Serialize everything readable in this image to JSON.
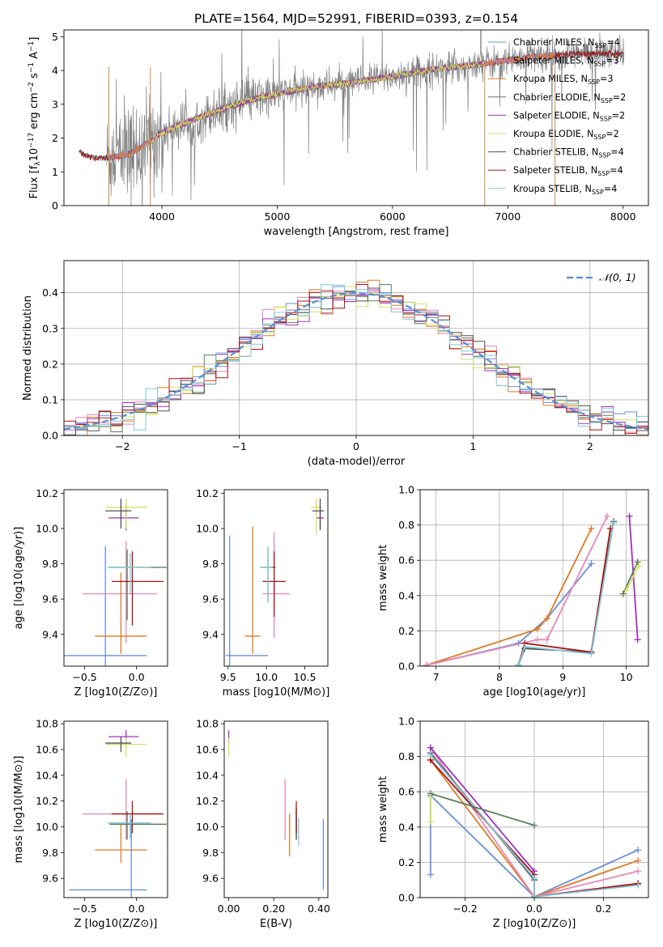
{
  "figure": {
    "title": "PLATE=1564, MJD=52991, FIBERID=0393, z=0.154"
  },
  "colors": {
    "Chabrier MILES": "#6a8fdc",
    "Salpeter MILES": "#e888b8",
    "Kroupa MILES": "#e07a22",
    "Chabrier ELODIE": "#5a7e5a",
    "Salpeter ELODIE": "#a030c0",
    "Kroupa ELODIE": "#d4e060",
    "Chabrier STELIB": "#505050",
    "Salpeter STELIB": "#b01010",
    "Kroupa STELIB": "#80c8d8",
    "data": "#808080",
    "gauss": "#5b8ed6",
    "grid": "#b0b0b0"
  },
  "chart_data": [
    {
      "id": "spectrum",
      "type": "line",
      "xlabel": "wavelength [Angstrom, rest frame]",
      "ylabel": "Flux [f_λ 10^-17 erg cm^-2 s^-1 A^-1]",
      "xlim": [
        3150,
        8220
      ],
      "ylim": [
        0,
        5.2
      ],
      "xticks": [
        4000,
        5000,
        6000,
        7000,
        8000
      ],
      "yticks": [
        0,
        1,
        2,
        3,
        4,
        5
      ],
      "grid": false,
      "legend_position": "right",
      "legend": [
        {
          "label": "Chabrier MILES, N",
          "sub": "SSP",
          "tail": "=4",
          "series": "Chabrier MILES"
        },
        {
          "label": "Salpeter MILES, N",
          "sub": "SSP",
          "tail": "=3",
          "series": "Salpeter MILES"
        },
        {
          "label": "Kroupa MILES, N",
          "sub": "SSP",
          "tail": "=3",
          "series": "Kroupa MILES"
        },
        {
          "label": "Chabrier ELODIE, N",
          "sub": "SSP",
          "tail": "=2",
          "series": "Chabrier ELODIE"
        },
        {
          "label": "Salpeter ELODIE, N",
          "sub": "SSP",
          "tail": "=2",
          "series": "Salpeter ELODIE"
        },
        {
          "label": "Kroupa ELODIE, N",
          "sub": "SSP",
          "tail": "=2",
          "series": "Kroupa ELODIE"
        },
        {
          "label": "Chabrier STELIB, N",
          "sub": "SSP",
          "tail": "=4",
          "series": "Chabrier STELIB"
        },
        {
          "label": "Salpeter STELIB, N",
          "sub": "SSP",
          "tail": "=4",
          "series": "Salpeter STELIB"
        },
        {
          "label": "Kroupa STELIB, N",
          "sub": "SSP",
          "tail": "=4",
          "series": "Kroupa STELIB"
        }
      ],
      "continuum": [
        [
          3280,
          1.65
        ],
        [
          3320,
          1.5
        ],
        [
          3400,
          1.42
        ],
        [
          3500,
          1.4
        ],
        [
          3600,
          1.45
        ],
        [
          3700,
          1.5
        ],
        [
          3800,
          1.7
        ],
        [
          3900,
          1.9
        ],
        [
          4000,
          2.15
        ],
        [
          4200,
          2.45
        ],
        [
          4400,
          2.7
        ],
        [
          4600,
          2.95
        ],
        [
          4800,
          3.15
        ],
        [
          5000,
          3.3
        ],
        [
          5200,
          3.45
        ],
        [
          5400,
          3.55
        ],
        [
          5600,
          3.62
        ],
        [
          5800,
          3.72
        ],
        [
          6000,
          3.82
        ],
        [
          6200,
          3.95
        ],
        [
          6400,
          4.05
        ],
        [
          6600,
          4.12
        ],
        [
          6800,
          4.2
        ],
        [
          7000,
          4.3
        ],
        [
          7200,
          4.4
        ],
        [
          7400,
          4.45
        ],
        [
          7600,
          4.5
        ],
        [
          7800,
          4.5
        ],
        [
          8000,
          4.48
        ]
      ],
      "series_ranges": {
        "Chabrier MILES": [
          3540,
          7410
        ],
        "Salpeter MILES": [
          3540,
          7410
        ],
        "Kroupa MILES": [
          3540,
          7410
        ],
        "Chabrier ELODIE": [
          3900,
          6800
        ],
        "Salpeter ELODIE": [
          3900,
          6800
        ],
        "Kroupa ELODIE": [
          3900,
          6800
        ],
        "Chabrier STELIB": [
          3280,
          8000
        ],
        "Salpeter STELIB": [
          3280,
          8000
        ],
        "Kroupa STELIB": [
          3280,
          8000
        ]
      },
      "data_range": [
        3520,
        8010
      ],
      "note_data_series": "observed spectrum shown in grey"
    },
    {
      "id": "residuals",
      "type": "histogram",
      "xlabel": "(data-model)/error",
      "ylabel": "Normed distribution",
      "xlim": [
        -2.5,
        2.5
      ],
      "ylim": [
        0,
        0.49
      ],
      "xticks": [
        -2,
        -1,
        0,
        1,
        2
      ],
      "yticks": [
        0,
        0.1,
        0.2,
        0.3,
        0.4
      ],
      "grid": true,
      "legend_position": "top-right",
      "legend": [
        {
          "label": "𝒩(0, 1)",
          "style": "dashed"
        }
      ],
      "bin_width": 0.1
    },
    {
      "id": "z-age",
      "type": "errorbar",
      "xlabel": "Z [log10(Z/Z⊙)]",
      "ylabel": "age [log10(age/yr)]",
      "xlim": [
        -0.7,
        0.3
      ],
      "ylim": [
        9.22,
        10.22
      ],
      "xticks": [
        -0.5,
        0.0
      ],
      "yticks": [
        9.4,
        9.6,
        9.8,
        10.0,
        10.2
      ],
      "grid": false,
      "points": [
        {
          "series": "Chabrier MILES",
          "x": -0.3,
          "y": 9.28,
          "xl": 0.4,
          "xr": 0.4,
          "yl": 0.62,
          "yr": 0.62
        },
        {
          "series": "Salpeter MILES",
          "x": -0.1,
          "y": 9.63,
          "xl": 0.42,
          "xr": 0.3,
          "yl": 0.28,
          "yr": 0.3
        },
        {
          "series": "Kroupa MILES",
          "x": -0.15,
          "y": 9.39,
          "xl": 0.25,
          "xr": 0.25,
          "yl": 0.1,
          "yr": 0.36
        },
        {
          "series": "Chabrier ELODIE",
          "x": -0.09,
          "y": 9.78,
          "xl": 0.17,
          "xr": 0.38,
          "yl": 0.3,
          "yr": 0.1
        },
        {
          "series": "Salpeter ELODIE",
          "x": -0.1,
          "y": 10.06,
          "xl": 0.17,
          "xr": 0.12,
          "yl": 0.07,
          "yr": 0.07
        },
        {
          "series": "Kroupa ELODIE",
          "x": -0.1,
          "y": 10.12,
          "xl": 0.2,
          "xr": 0.2,
          "yl": 0.12,
          "yr": 0.05
        },
        {
          "series": "Chabrier STELIB",
          "x": -0.15,
          "y": 10.1,
          "xl": 0.15,
          "xr": 0.1,
          "yl": 0.1,
          "yr": 0.07
        },
        {
          "series": "Salpeter STELIB",
          "x": -0.04,
          "y": 9.7,
          "xl": 0.2,
          "xr": 0.3,
          "yl": 0.25,
          "yr": 0.17
        },
        {
          "series": "Kroupa STELIB",
          "x": -0.06,
          "y": 9.78,
          "xl": 0.22,
          "xr": 0.2,
          "yl": 0.15,
          "yr": 0.08
        }
      ]
    },
    {
      "id": "mass-age",
      "type": "errorbar",
      "xlabel": "mass [log10(M/M⊙)]",
      "ylabel": "",
      "xlim": [
        9.45,
        10.8
      ],
      "ylim": [
        9.22,
        10.22
      ],
      "xticks": [
        9.5,
        10.0,
        10.5
      ],
      "yticks": [
        9.4,
        9.6,
        9.8,
        10.0,
        10.2
      ],
      "grid": false,
      "points": [
        {
          "series": "Chabrier MILES",
          "x": 9.52,
          "y": 9.28,
          "xl": 0.05,
          "xr": 0.5,
          "yl": 0.62,
          "yr": 0.68
        },
        {
          "series": "Salpeter MILES",
          "x": 10.1,
          "y": 9.63,
          "xl": 0.15,
          "xr": 0.2,
          "yl": 0.25,
          "yr": 0.35
        },
        {
          "series": "Kroupa MILES",
          "x": 9.82,
          "y": 9.39,
          "xl": 0.1,
          "xr": 0.1,
          "yl": 0.1,
          "yr": 0.62
        },
        {
          "series": "Chabrier ELODIE",
          "x": 10.02,
          "y": 9.78,
          "xl": 0.1,
          "xr": 0.1,
          "yl": 0.2,
          "yr": 0.1
        },
        {
          "series": "Salpeter ELODIE",
          "x": 10.7,
          "y": 10.06,
          "xl": 0.05,
          "xr": 0.05,
          "yl": 0.07,
          "yr": 0.07
        },
        {
          "series": "Kroupa ELODIE",
          "x": 10.65,
          "y": 10.12,
          "xl": 0.07,
          "xr": 0.07,
          "yl": 0.15,
          "yr": 0.05
        },
        {
          "series": "Chabrier STELIB",
          "x": 10.7,
          "y": 10.1,
          "xl": 0.1,
          "xr": 0.05,
          "yl": 0.1,
          "yr": 0.07
        },
        {
          "series": "Salpeter STELIB",
          "x": 10.1,
          "y": 9.7,
          "xl": 0.15,
          "xr": 0.15,
          "yl": 0.2,
          "yr": 0.17
        },
        {
          "series": "Kroupa STELIB",
          "x": 10.02,
          "y": 9.78,
          "xl": 0.1,
          "xr": 0.05,
          "yl": 0.2,
          "yr": 0.12
        }
      ]
    },
    {
      "id": "age-weight",
      "type": "line",
      "xlabel": "age [log10(age/yr)]",
      "ylabel": "mass weight",
      "xlim": [
        6.75,
        10.35
      ],
      "ylim": [
        0,
        1.0
      ],
      "xticks": [
        7,
        8,
        9,
        10
      ],
      "yticks": [
        0,
        0.2,
        0.4,
        0.6,
        0.8,
        1.0
      ],
      "grid": true,
      "series": [
        {
          "name": "Chabrier MILES",
          "x": [
            6.85,
            8.3,
            8.75,
            9.45
          ],
          "y": [
            0.005,
            0.13,
            0.27,
            0.58
          ]
        },
        {
          "name": "Kroupa MILES",
          "x": [
            6.85,
            8.6,
            8.75,
            9.45
          ],
          "y": [
            0.005,
            0.21,
            0.27,
            0.78
          ]
        },
        {
          "name": "Salpeter MILES",
          "x": [
            6.85,
            8.6,
            8.75,
            9.7
          ],
          "y": [
            0.005,
            0.15,
            0.15,
            0.85
          ]
        },
        {
          "name": "Chabrier STELIB",
          "x": [
            8.3,
            8.4,
            9.45,
            9.8
          ],
          "y": [
            0.005,
            0.1,
            0.08,
            0.82
          ]
        },
        {
          "name": "Salpeter STELIB",
          "x": [
            8.3,
            8.4,
            9.45,
            9.75
          ],
          "y": [
            0.005,
            0.13,
            0.08,
            0.78
          ]
        },
        {
          "name": "Kroupa STELIB",
          "x": [
            8.3,
            8.4,
            9.45,
            9.8
          ],
          "y": [
            0.005,
            0.11,
            0.07,
            0.81
          ]
        },
        {
          "name": "Salpeter ELODIE",
          "x": [
            10.05,
            10.18
          ],
          "y": [
            0.85,
            0.15
          ]
        },
        {
          "name": "Chabrier ELODIE",
          "x": [
            9.95,
            10.18
          ],
          "y": [
            0.41,
            0.59
          ]
        },
        {
          "name": "Kroupa ELODIE",
          "x": [
            10.0,
            10.2
          ],
          "y": [
            0.43,
            0.57
          ]
        }
      ]
    },
    {
      "id": "z-mass",
      "type": "errorbar",
      "xlabel": "Z [log10(Z/Z⊙)]",
      "ylabel": "mass [log10(M/M⊙)]",
      "xlim": [
        -0.7,
        0.3
      ],
      "ylim": [
        9.45,
        10.82
      ],
      "xticks": [
        -0.5,
        0.0
      ],
      "yticks": [
        9.6,
        9.8,
        10.0,
        10.2,
        10.4,
        10.6,
        10.8
      ],
      "grid": false,
      "points": [
        {
          "series": "Chabrier MILES",
          "x": -0.05,
          "y": 9.51,
          "xl": 0.6,
          "xr": 0.15,
          "yl": 0.06,
          "yr": 0.55
        },
        {
          "series": "Salpeter MILES",
          "x": -0.1,
          "y": 10.1,
          "xl": 0.42,
          "xr": 0.3,
          "yl": 0.2,
          "yr": 0.27
        },
        {
          "series": "Kroupa MILES",
          "x": -0.15,
          "y": 9.82,
          "xl": 0.25,
          "xr": 0.25,
          "yl": 0.1,
          "yr": 0.2
        },
        {
          "series": "Chabrier ELODIE",
          "x": -0.09,
          "y": 10.02,
          "xl": 0.17,
          "xr": 0.38,
          "yl": 0.12,
          "yr": 0.1
        },
        {
          "series": "Salpeter ELODIE",
          "x": -0.1,
          "y": 10.7,
          "xl": 0.17,
          "xr": 0.12,
          "yl": 0.05,
          "yr": 0.05
        },
        {
          "series": "Kroupa ELODIE",
          "x": -0.1,
          "y": 10.64,
          "xl": 0.2,
          "xr": 0.2,
          "yl": 0.1,
          "yr": 0.05
        },
        {
          "series": "Chabrier STELIB",
          "x": -0.15,
          "y": 10.65,
          "xl": 0.15,
          "xr": 0.1,
          "yl": 0.07,
          "yr": 0.05
        },
        {
          "series": "Salpeter STELIB",
          "x": -0.04,
          "y": 10.1,
          "xl": 0.2,
          "xr": 0.3,
          "yl": 0.15,
          "yr": 0.1
        },
        {
          "series": "Kroupa STELIB",
          "x": -0.06,
          "y": 10.03,
          "xl": 0.22,
          "xr": 0.2,
          "yl": 0.12,
          "yr": 0.07
        }
      ]
    },
    {
      "id": "ebv-mass",
      "type": "errorbar",
      "xlabel": "E(B-V)",
      "ylabel": "",
      "xlim": [
        -0.02,
        0.44
      ],
      "ylim": [
        9.45,
        10.82
      ],
      "xticks": [
        0.0,
        0.2,
        0.4
      ],
      "yticks": [
        9.6,
        9.8,
        10.0,
        10.2,
        10.4,
        10.6,
        10.8
      ],
      "grid": false,
      "points": [
        {
          "series": "Chabrier MILES",
          "x": 0.42,
          "y": 9.51,
          "xl": 0,
          "xr": 0,
          "yl": 0.0,
          "yr": 0.55
        },
        {
          "series": "Salpeter MILES",
          "x": 0.25,
          "y": 10.1,
          "xl": 0,
          "xr": 0,
          "yl": 0.2,
          "yr": 0.27
        },
        {
          "series": "Kroupa MILES",
          "x": 0.27,
          "y": 9.82,
          "xl": 0,
          "xr": 0,
          "yl": 0.05,
          "yr": 0.28
        },
        {
          "series": "Chabrier ELODIE",
          "x": 0.3,
          "y": 10.02,
          "xl": 0,
          "xr": 0,
          "yl": 0.12,
          "yr": 0.1
        },
        {
          "series": "Salpeter ELODIE",
          "x": 0.0,
          "y": 10.7,
          "xl": 0,
          "xr": 0,
          "yl": 0.05,
          "yr": 0.05
        },
        {
          "series": "Kroupa ELODIE",
          "x": 0.0,
          "y": 10.64,
          "xl": 0,
          "xr": 0,
          "yl": 0.1,
          "yr": 0.05
        },
        {
          "series": "Chabrier STELIB",
          "x": 0.3,
          "y": 10.05,
          "xl": 0,
          "xr": 0,
          "yl": 0.15,
          "yr": 0.1
        },
        {
          "series": "Salpeter STELIB",
          "x": 0.3,
          "y": 10.1,
          "xl": 0,
          "xr": 0,
          "yl": 0.15,
          "yr": 0.1
        },
        {
          "series": "Kroupa STELIB",
          "x": 0.31,
          "y": 9.95,
          "xl": 0,
          "xr": 0,
          "yl": 0.1,
          "yr": 0.12
        }
      ]
    },
    {
      "id": "z-weight",
      "type": "line",
      "xlabel": "Z [log10(Z/Z⊙)]",
      "ylabel": "mass weight",
      "xlim": [
        -0.33,
        0.33
      ],
      "ylim": [
        0,
        1.0
      ],
      "xticks": [
        -0.2,
        0.0,
        0.2
      ],
      "yticks": [
        0,
        0.2,
        0.4,
        0.6,
        0.8,
        1.0
      ],
      "grid": true,
      "series": [
        {
          "name": "Chabrier MILES",
          "x": [
            -0.3,
            -0.3,
            0.0,
            0.3
          ],
          "y": [
            0.13,
            0.58,
            0.005,
            0.27
          ]
        },
        {
          "name": "Kroupa MILES",
          "x": [
            -0.3,
            0.0,
            0.3
          ],
          "y": [
            0.78,
            0.005,
            0.21
          ]
        },
        {
          "name": "Salpeter MILES",
          "x": [
            -0.3,
            0.0,
            0.3
          ],
          "y": [
            0.85,
            0.005,
            0.15
          ]
        },
        {
          "name": "Chabrier STELIB",
          "x": [
            -0.3,
            0.0,
            0.0,
            0.3
          ],
          "y": [
            0.82,
            0.1,
            0.005,
            0.08
          ]
        },
        {
          "name": "Salpeter STELIB",
          "x": [
            -0.3,
            0.0,
            0.0,
            0.3
          ],
          "y": [
            0.78,
            0.13,
            0.005,
            0.08
          ]
        },
        {
          "name": "Kroupa STELIB",
          "x": [
            -0.3,
            0.0,
            0.0,
            0.3
          ],
          "y": [
            0.81,
            0.11,
            0.005,
            0.07
          ]
        },
        {
          "name": "Salpeter ELODIE",
          "x": [
            -0.3,
            -0.3,
            0.0
          ],
          "y": [
            0.85,
            0.85,
            0.15
          ]
        },
        {
          "name": "Chabrier ELODIE",
          "x": [
            -0.3,
            0.0
          ],
          "y": [
            0.59,
            0.41
          ]
        },
        {
          "name": "Kroupa ELODIE",
          "x": [
            -0.3,
            -0.3
          ],
          "y": [
            0.43,
            0.57
          ]
        }
      ]
    }
  ]
}
